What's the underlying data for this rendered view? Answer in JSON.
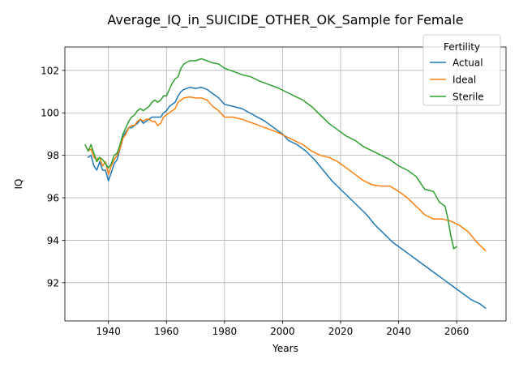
{
  "chart_data": {
    "type": "line",
    "title": "Average_IQ_in_SUICIDE_OTHER_OK_Sample for Female",
    "xlabel": "Years",
    "ylabel": "IQ",
    "xlim": [
      1925,
      2077
    ],
    "ylim": [
      90.2,
      103.1
    ],
    "xticks": [
      1940,
      1960,
      1980,
      2000,
      2020,
      2040,
      2060
    ],
    "yticks": [
      92,
      94,
      96,
      98,
      100,
      102
    ],
    "grid": true,
    "legend": {
      "title": "Fertility",
      "position": "top-right"
    },
    "series": [
      {
        "name": "Actual",
        "color": "#1f77b4",
        "points": [
          [
            1933,
            97.9
          ],
          [
            1934,
            98.0
          ],
          [
            1935,
            97.5
          ],
          [
            1936,
            97.3
          ],
          [
            1937,
            97.7
          ],
          [
            1938,
            97.3
          ],
          [
            1939,
            97.3
          ],
          [
            1940,
            96.8
          ],
          [
            1941,
            97.2
          ],
          [
            1942,
            97.6
          ],
          [
            1943,
            97.8
          ],
          [
            1944,
            98.3
          ],
          [
            1945,
            98.9
          ],
          [
            1946,
            99.1
          ],
          [
            1947,
            99.3
          ],
          [
            1948,
            99.3
          ],
          [
            1949,
            99.4
          ],
          [
            1950,
            99.5
          ],
          [
            1951,
            99.7
          ],
          [
            1952,
            99.5
          ],
          [
            1953,
            99.6
          ],
          [
            1954,
            99.7
          ],
          [
            1955,
            99.8
          ],
          [
            1956,
            99.8
          ],
          [
            1957,
            99.8
          ],
          [
            1958,
            99.8
          ],
          [
            1959,
            100.0
          ],
          [
            1960,
            100.1
          ],
          [
            1961,
            100.3
          ],
          [
            1962,
            100.4
          ],
          [
            1963,
            100.5
          ],
          [
            1964,
            100.8
          ],
          [
            1965,
            101.0
          ],
          [
            1966,
            101.1
          ],
          [
            1968,
            101.2
          ],
          [
            1970,
            101.15
          ],
          [
            1972,
            101.2
          ],
          [
            1974,
            101.1
          ],
          [
            1976,
            100.9
          ],
          [
            1978,
            100.7
          ],
          [
            1980,
            100.4
          ],
          [
            1983,
            100.3
          ],
          [
            1986,
            100.2
          ],
          [
            1990,
            99.9
          ],
          [
            1994,
            99.6
          ],
          [
            1998,
            99.2
          ],
          [
            2000,
            99.0
          ],
          [
            2002,
            98.7
          ],
          [
            2005,
            98.5
          ],
          [
            2008,
            98.2
          ],
          [
            2011,
            97.8
          ],
          [
            2014,
            97.3
          ],
          [
            2017,
            96.8
          ],
          [
            2020,
            96.4
          ],
          [
            2023,
            96.0
          ],
          [
            2026,
            95.6
          ],
          [
            2029,
            95.2
          ],
          [
            2032,
            94.7
          ],
          [
            2035,
            94.3
          ],
          [
            2038,
            93.9
          ],
          [
            2041,
            93.6
          ],
          [
            2044,
            93.3
          ],
          [
            2047,
            93.0
          ],
          [
            2050,
            92.7
          ],
          [
            2053,
            92.4
          ],
          [
            2056,
            92.1
          ],
          [
            2059,
            91.8
          ],
          [
            2062,
            91.5
          ],
          [
            2065,
            91.2
          ],
          [
            2068,
            91.0
          ],
          [
            2070,
            90.8
          ]
        ]
      },
      {
        "name": "Ideal",
        "color": "#ff7f0e",
        "points": [
          [
            1933,
            98.2
          ],
          [
            1934,
            98.3
          ],
          [
            1935,
            97.9
          ],
          [
            1936,
            97.8
          ],
          [
            1937,
            97.9
          ],
          [
            1938,
            97.5
          ],
          [
            1939,
            97.7
          ],
          [
            1940,
            97.1
          ],
          [
            1941,
            97.5
          ],
          [
            1942,
            97.8
          ],
          [
            1943,
            98.0
          ],
          [
            1944,
            98.3
          ],
          [
            1945,
            98.8
          ],
          [
            1946,
            99.0
          ],
          [
            1947,
            99.3
          ],
          [
            1948,
            99.4
          ],
          [
            1949,
            99.4
          ],
          [
            1950,
            99.6
          ],
          [
            1951,
            99.7
          ],
          [
            1952,
            99.6
          ],
          [
            1953,
            99.7
          ],
          [
            1954,
            99.7
          ],
          [
            1955,
            99.6
          ],
          [
            1956,
            99.6
          ],
          [
            1957,
            99.4
          ],
          [
            1958,
            99.5
          ],
          [
            1959,
            99.8
          ],
          [
            1960,
            99.9
          ],
          [
            1961,
            100.0
          ],
          [
            1962,
            100.1
          ],
          [
            1963,
            100.2
          ],
          [
            1964,
            100.5
          ],
          [
            1965,
            100.6
          ],
          [
            1966,
            100.7
          ],
          [
            1968,
            100.75
          ],
          [
            1970,
            100.7
          ],
          [
            1972,
            100.7
          ],
          [
            1974,
            100.6
          ],
          [
            1976,
            100.3
          ],
          [
            1978,
            100.1
          ],
          [
            1980,
            99.8
          ],
          [
            1983,
            99.8
          ],
          [
            1986,
            99.7
          ],
          [
            1990,
            99.5
          ],
          [
            1994,
            99.3
          ],
          [
            1998,
            99.1
          ],
          [
            2001,
            98.9
          ],
          [
            2004,
            98.7
          ],
          [
            2007,
            98.5
          ],
          [
            2010,
            98.2
          ],
          [
            2013,
            98.0
          ],
          [
            2016,
            97.9
          ],
          [
            2019,
            97.7
          ],
          [
            2022,
            97.4
          ],
          [
            2025,
            97.1
          ],
          [
            2028,
            96.8
          ],
          [
            2031,
            96.6
          ],
          [
            2034,
            96.55
          ],
          [
            2037,
            96.55
          ],
          [
            2040,
            96.3
          ],
          [
            2043,
            96.0
          ],
          [
            2046,
            95.6
          ],
          [
            2049,
            95.2
          ],
          [
            2052,
            95.0
          ],
          [
            2055,
            95.0
          ],
          [
            2058,
            94.9
          ],
          [
            2061,
            94.7
          ],
          [
            2064,
            94.4
          ],
          [
            2067,
            93.9
          ],
          [
            2070,
            93.5
          ]
        ]
      },
      {
        "name": "Sterile",
        "color": "#2ca02c",
        "points": [
          [
            1932,
            98.5
          ],
          [
            1933,
            98.2
          ],
          [
            1934,
            98.5
          ],
          [
            1935,
            98.1
          ],
          [
            1936,
            97.7
          ],
          [
            1937,
            97.9
          ],
          [
            1938,
            97.8
          ],
          [
            1939,
            97.6
          ],
          [
            1940,
            97.4
          ],
          [
            1941,
            97.6
          ],
          [
            1942,
            98.0
          ],
          [
            1943,
            98.1
          ],
          [
            1944,
            98.5
          ],
          [
            1945,
            99.0
          ],
          [
            1946,
            99.3
          ],
          [
            1947,
            99.6
          ],
          [
            1948,
            99.8
          ],
          [
            1949,
            99.9
          ],
          [
            1950,
            100.1
          ],
          [
            1951,
            100.2
          ],
          [
            1952,
            100.1
          ],
          [
            1953,
            100.2
          ],
          [
            1954,
            100.3
          ],
          [
            1955,
            100.5
          ],
          [
            1956,
            100.6
          ],
          [
            1957,
            100.5
          ],
          [
            1958,
            100.6
          ],
          [
            1959,
            100.8
          ],
          [
            1960,
            100.8
          ],
          [
            1961,
            101.1
          ],
          [
            1962,
            101.4
          ],
          [
            1963,
            101.6
          ],
          [
            1964,
            101.7
          ],
          [
            1965,
            102.1
          ],
          [
            1966,
            102.3
          ],
          [
            1968,
            102.45
          ],
          [
            1970,
            102.45
          ],
          [
            1972,
            102.55
          ],
          [
            1974,
            102.45
          ],
          [
            1976,
            102.35
          ],
          [
            1978,
            102.3
          ],
          [
            1980,
            102.1
          ],
          [
            1983,
            101.95
          ],
          [
            1986,
            101.8
          ],
          [
            1989,
            101.7
          ],
          [
            1992,
            101.5
          ],
          [
            1995,
            101.35
          ],
          [
            1998,
            101.2
          ],
          [
            2001,
            101.0
          ],
          [
            2004,
            100.8
          ],
          [
            2007,
            100.6
          ],
          [
            2010,
            100.3
          ],
          [
            2013,
            99.9
          ],
          [
            2016,
            99.5
          ],
          [
            2019,
            99.2
          ],
          [
            2022,
            98.9
          ],
          [
            2025,
            98.7
          ],
          [
            2028,
            98.4
          ],
          [
            2031,
            98.2
          ],
          [
            2034,
            98.0
          ],
          [
            2037,
            97.8
          ],
          [
            2040,
            97.5
          ],
          [
            2043,
            97.3
          ],
          [
            2046,
            97.0
          ],
          [
            2049,
            96.4
          ],
          [
            2052,
            96.3
          ],
          [
            2054,
            95.8
          ],
          [
            2056,
            95.6
          ],
          [
            2057,
            95.0
          ],
          [
            2058,
            94.2
          ],
          [
            2059,
            93.6
          ],
          [
            2060,
            93.7
          ]
        ]
      }
    ]
  }
}
